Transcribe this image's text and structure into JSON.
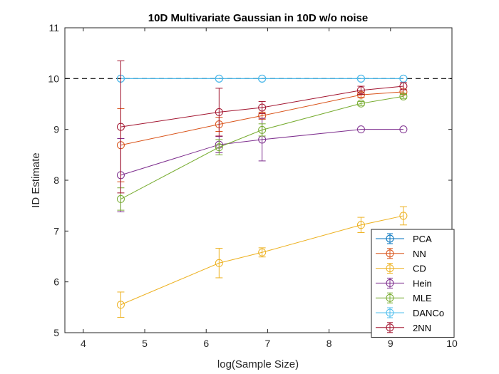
{
  "chart_data": {
    "type": "line",
    "title": "10D Multivariate Gaussian in 10D w/o noise",
    "xlabel": "log(Sample Size)",
    "ylabel": "ID Estimate",
    "xlim": [
      3.7,
      10
    ],
    "ylim": [
      5,
      11
    ],
    "xticks": [
      4,
      5,
      6,
      7,
      8,
      9,
      10
    ],
    "yticks": [
      5,
      6,
      7,
      8,
      9,
      10,
      11
    ],
    "grid": false,
    "legend_position": "bottom-right",
    "reference_line": {
      "y": 10,
      "style": "dashed",
      "color": "#000000"
    },
    "x": [
      4.61,
      6.21,
      6.91,
      8.52,
      9.21
    ],
    "series": [
      {
        "name": "PCA",
        "color": "#0072BD",
        "values": [
          10,
          10,
          10,
          10,
          10
        ],
        "err": [
          0,
          0,
          0,
          0,
          0
        ]
      },
      {
        "name": "NN",
        "color": "#D95319",
        "values": [
          8.69,
          9.1,
          9.27,
          9.68,
          9.74
        ],
        "err": [
          0.72,
          0.14,
          0.07,
          0.05,
          0.04
        ]
      },
      {
        "name": "CD",
        "color": "#EDB120",
        "values": [
          5.55,
          6.37,
          6.58,
          7.12,
          7.3
        ],
        "err": [
          0.25,
          0.29,
          0.09,
          0.15,
          0.18
        ]
      },
      {
        "name": "Hein",
        "color": "#7E2F8E",
        "values": [
          8.1,
          8.7,
          8.8,
          9.0,
          9.0
        ],
        "err": [
          0.72,
          0.16,
          0.42,
          0,
          0
        ]
      },
      {
        "name": "MLE",
        "color": "#77AC30",
        "values": [
          7.63,
          8.65,
          8.99,
          9.51,
          9.65
        ],
        "err": [
          0.22,
          0.15,
          0.12,
          0.04,
          0.04
        ]
      },
      {
        "name": "DANCo",
        "color": "#4DBEEE",
        "values": [
          10,
          10,
          10,
          10,
          10
        ],
        "err": [
          0,
          0,
          0,
          0,
          0
        ]
      },
      {
        "name": "2NN",
        "color": "#A2142F",
        "values": [
          9.05,
          9.34,
          9.43,
          9.77,
          9.85
        ],
        "err": [
          1.3,
          0.47,
          0.12,
          0.08,
          0.07
        ]
      }
    ]
  }
}
